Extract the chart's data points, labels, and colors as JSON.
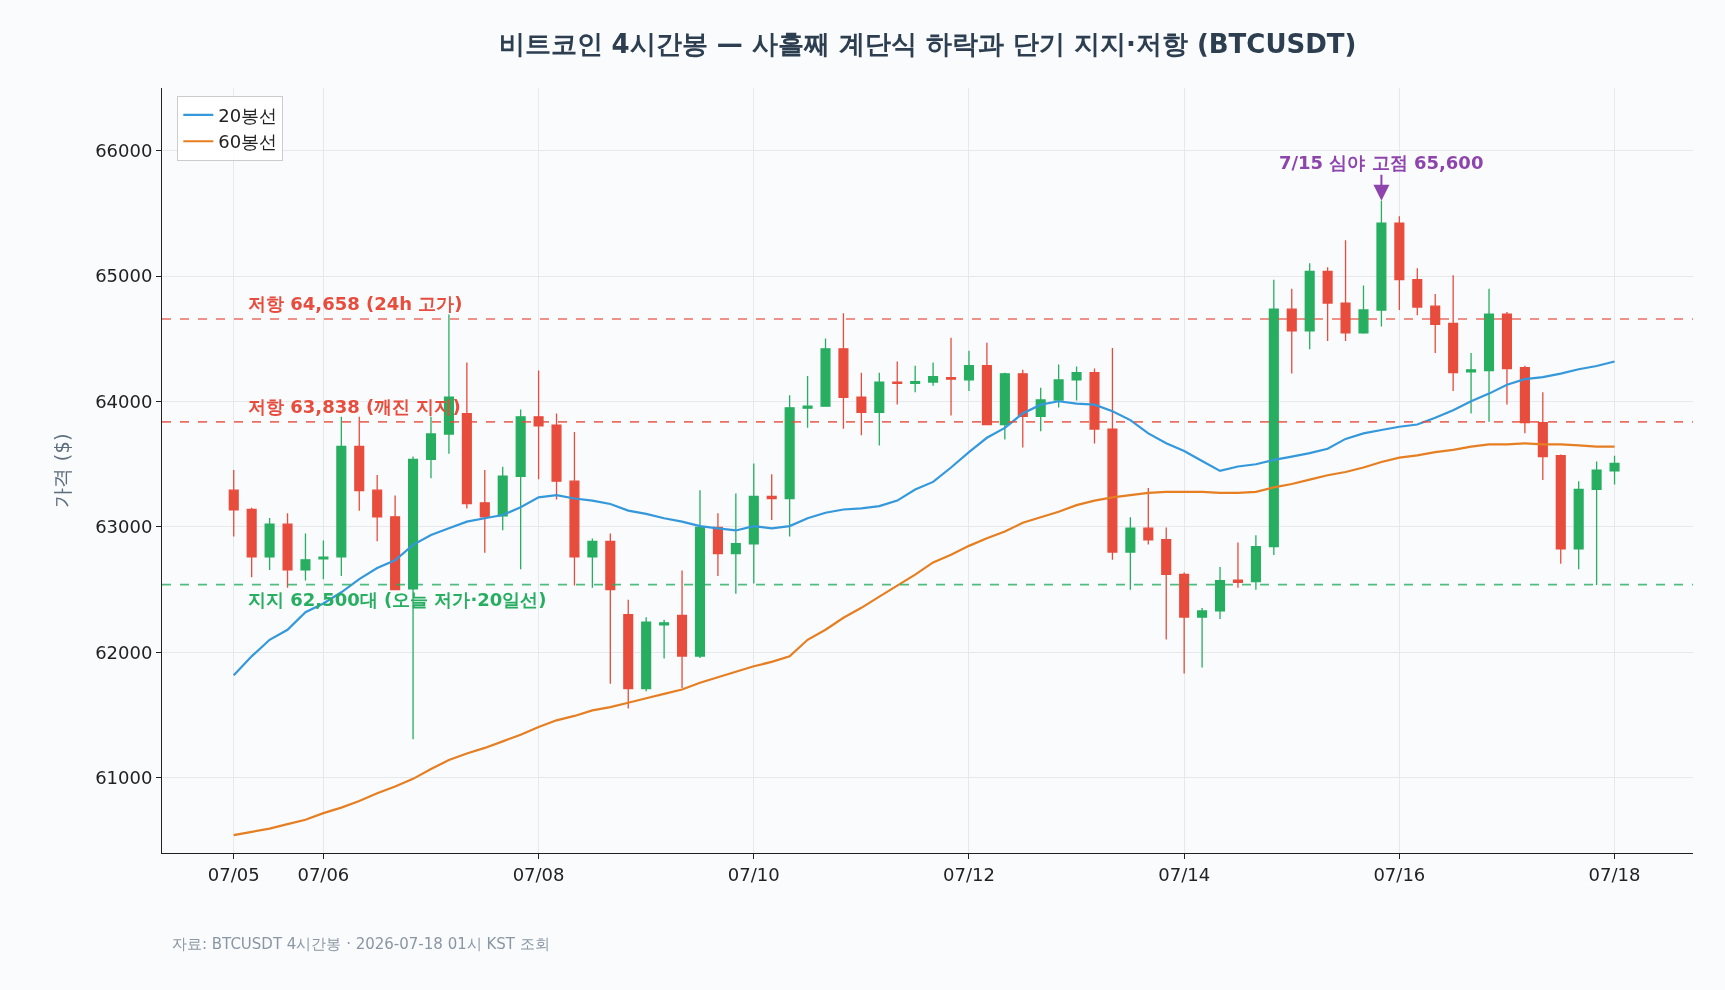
{
  "chart_data": {
    "type": "candlestick",
    "title": "비트코인 4시간봉 — 사흘째 계단식 하락과 단기 지지·저항 (BTCUSDT)",
    "ylabel": "가격 ($)",
    "x": [
      "2026-07-05T04:00",
      "2026-07-05T08:00",
      "2026-07-05T12:00",
      "2026-07-05T16:00",
      "2026-07-05T20:00",
      "2026-07-06T00:00",
      "2026-07-06T04:00",
      "2026-07-06T08:00",
      "2026-07-06T12:00",
      "2026-07-06T16:00",
      "2026-07-06T20:00",
      "2026-07-07T00:00",
      "2026-07-07T04:00",
      "2026-07-07T08:00",
      "2026-07-07T12:00",
      "2026-07-07T16:00",
      "2026-07-07T20:00",
      "2026-07-08T00:00",
      "2026-07-08T04:00",
      "2026-07-08T08:00",
      "2026-07-08T12:00",
      "2026-07-08T16:00",
      "2026-07-08T20:00",
      "2026-07-09T00:00",
      "2026-07-09T04:00",
      "2026-07-09T08:00",
      "2026-07-09T12:00",
      "2026-07-09T16:00",
      "2026-07-09T20:00",
      "2026-07-10T00:00",
      "2026-07-10T04:00",
      "2026-07-10T08:00",
      "2026-07-10T12:00",
      "2026-07-10T16:00",
      "2026-07-10T20:00",
      "2026-07-11T00:00",
      "2026-07-11T04:00",
      "2026-07-11T08:00",
      "2026-07-11T12:00",
      "2026-07-11T16:00",
      "2026-07-11T20:00",
      "2026-07-12T00:00",
      "2026-07-12T04:00",
      "2026-07-12T08:00",
      "2026-07-12T12:00",
      "2026-07-12T16:00",
      "2026-07-12T20:00",
      "2026-07-13T00:00",
      "2026-07-13T04:00",
      "2026-07-13T08:00",
      "2026-07-13T12:00",
      "2026-07-13T16:00",
      "2026-07-13T20:00",
      "2026-07-14T00:00",
      "2026-07-14T04:00",
      "2026-07-14T08:00",
      "2026-07-14T12:00",
      "2026-07-14T16:00",
      "2026-07-14T20:00",
      "2026-07-15T00:00",
      "2026-07-15T04:00",
      "2026-07-15T08:00",
      "2026-07-15T12:00",
      "2026-07-15T16:00",
      "2026-07-15T20:00",
      "2026-07-16T00:00",
      "2026-07-16T04:00",
      "2026-07-16T08:00",
      "2026-07-16T12:00",
      "2026-07-16T16:00",
      "2026-07-16T20:00",
      "2026-07-17T00:00",
      "2026-07-17T04:00",
      "2026-07-17T08:00",
      "2026-07-17T12:00",
      "2026-07-17T16:00",
      "2026-07-17T20:00",
      "2026-07-18T00:00"
    ],
    "ohlc": [
      [
        63293,
        63453,
        62924,
        63137
      ],
      [
        63140,
        63153,
        62598,
        62761
      ],
      [
        62761,
        63071,
        62657,
        63022
      ],
      [
        63022,
        63110,
        62516,
        62657
      ],
      [
        62657,
        62947,
        62572,
        62738
      ],
      [
        62745,
        62892,
        62582,
        62760
      ],
      [
        62761,
        63878,
        62608,
        63643
      ],
      [
        63643,
        63878,
        63130,
        63290
      ],
      [
        63293,
        63414,
        62885,
        63081
      ],
      [
        63081,
        63251,
        62495,
        62500
      ],
      [
        62506,
        63561,
        61308,
        63538
      ],
      [
        63538,
        63878,
        63388,
        63741
      ],
      [
        63741,
        64694,
        63584,
        64035
      ],
      [
        63904,
        64312,
        63146,
        63186
      ],
      [
        63192,
        63453,
        62794,
        63081
      ],
      [
        63088,
        63479,
        62973,
        63404
      ],
      [
        63404,
        63937,
        62663,
        63878
      ],
      [
        63878,
        64247,
        63381,
        63806
      ],
      [
        63812,
        63904,
        63218,
        63365
      ],
      [
        63365,
        63757,
        62533,
        62761
      ],
      [
        62761,
        62908,
        62516,
        62885
      ],
      [
        62885,
        62947,
        61749,
        62500
      ],
      [
        62300,
        62420,
        61553,
        61710
      ],
      [
        61710,
        62280,
        61690,
        62240
      ],
      [
        62220,
        62260,
        61950,
        62235
      ],
      [
        62294,
        62653,
        61716,
        61971
      ],
      [
        61971,
        63293,
        61955,
        62996
      ],
      [
        62996,
        63110,
        62608,
        62787
      ],
      [
        62787,
        63267,
        62467,
        62866
      ],
      [
        62866,
        63506,
        62549,
        63244
      ],
      [
        63244,
        63421,
        63055,
        63225
      ],
      [
        63225,
        64051,
        62924,
        63950
      ],
      [
        63947,
        64204,
        63790,
        63963
      ],
      [
        63963,
        64502,
        63960,
        64420
      ],
      [
        64420,
        64704,
        63783,
        64034
      ],
      [
        64034,
        64230,
        63731,
        63914
      ],
      [
        63914,
        64230,
        63649,
        64155
      ],
      [
        64155,
        64319,
        63976,
        64145
      ],
      [
        64145,
        64286,
        64074,
        64159
      ],
      [
        64155,
        64312,
        64126,
        64198
      ],
      [
        64191,
        64508,
        63888,
        64178
      ],
      [
        64172,
        64404,
        64083,
        64286
      ],
      [
        64286,
        64469,
        63810,
        63816
      ],
      [
        63816,
        64230,
        63698,
        64221
      ],
      [
        64221,
        64253,
        63633,
        63881
      ],
      [
        63881,
        64110,
        63763,
        64012
      ],
      [
        64012,
        64296,
        63953,
        64172
      ],
      [
        64172,
        64279,
        64008,
        64230
      ],
      [
        64230,
        64263,
        63666,
        63780
      ],
      [
        63780,
        64426,
        62738,
        62800
      ],
      [
        62800,
        63078,
        62500,
        62990
      ],
      [
        62990,
        63310,
        62859,
        62898
      ],
      [
        62898,
        62996,
        62102,
        62621
      ],
      [
        62621,
        62637,
        61831,
        62281
      ],
      [
        62281,
        62353,
        61880,
        62330
      ],
      [
        62330,
        62680,
        62265,
        62572
      ],
      [
        62575,
        62875,
        62516,
        62559
      ],
      [
        62565,
        62934,
        62500,
        62843
      ],
      [
        62843,
        64971,
        62777,
        64736
      ],
      [
        64736,
        64900,
        64224,
        64563
      ],
      [
        64563,
        65102,
        64416,
        65037
      ],
      [
        65037,
        65070,
        64482,
        64785
      ],
      [
        64785,
        65285,
        64482,
        64547
      ],
      [
        64547,
        64926,
        64540,
        64730
      ],
      [
        64730,
        65600,
        64599,
        65423
      ],
      [
        65423,
        65478,
        64730,
        64972
      ],
      [
        64972,
        65063,
        64687,
        64753
      ],
      [
        64760,
        64857,
        64387,
        64616
      ],
      [
        64622,
        65007,
        64083,
        64230
      ],
      [
        64237,
        64387,
        63904,
        64253
      ],
      [
        64247,
        64900,
        63839,
        64697
      ],
      [
        64697,
        64713,
        63976,
        64263
      ],
      [
        64270,
        64286,
        63747,
        63832
      ],
      [
        63832,
        64074,
        63375,
        63561
      ],
      [
        63568,
        63578,
        62706,
        62826
      ],
      [
        62826,
        63365,
        62663,
        63300
      ],
      [
        63300,
        63522,
        62536,
        63453
      ],
      [
        63447,
        63568,
        63339,
        63506
      ]
    ],
    "colors": [
      "#e74c3c",
      "#e74c3c",
      "#27ae60",
      "#e74c3c",
      "#27ae60",
      "#27ae60",
      "#27ae60",
      "#e74c3c",
      "#e74c3c",
      "#e74c3c",
      "#27ae60",
      "#27ae60",
      "#27ae60",
      "#e74c3c",
      "#e74c3c",
      "#27ae60",
      "#27ae60",
      "#e74c3c",
      "#e74c3c",
      "#e74c3c",
      "#27ae60",
      "#e74c3c",
      "#e74c3c",
      "#27ae60",
      "#27ae60",
      "#e74c3c",
      "#27ae60",
      "#e74c3c",
      "#27ae60",
      "#27ae60",
      "#e74c3c",
      "#27ae60",
      "#27ae60",
      "#27ae60",
      "#e74c3c",
      "#e74c3c",
      "#27ae60",
      "#e74c3c",
      "#27ae60",
      "#27ae60",
      "#e74c3c",
      "#27ae60",
      "#e74c3c",
      "#27ae60",
      "#e74c3c",
      "#27ae60",
      "#27ae60",
      "#27ae60",
      "#e74c3c",
      "#e74c3c",
      "#27ae60",
      "#e74c3c",
      "#e74c3c",
      "#e74c3c",
      "#27ae60",
      "#27ae60",
      "#e74c3c",
      "#27ae60",
      "#27ae60",
      "#e74c3c",
      "#27ae60",
      "#e74c3c",
      "#e74c3c",
      "#27ae60",
      "#27ae60",
      "#e74c3c",
      "#e74c3c",
      "#e74c3c",
      "#e74c3c",
      "#27ae60",
      "#27ae60",
      "#e74c3c",
      "#e74c3c",
      "#e74c3c",
      "#e74c3c",
      "#27ae60",
      "#27ae60",
      "#27ae60"
    ],
    "series": [
      {
        "name": "20봉선",
        "type": "line",
        "color": "#3498db",
        "values": [
          61818,
          61968,
          62100,
          62180,
          62320,
          62390,
          62479,
          62584,
          62672,
          62734,
          62857,
          62936,
          62989,
          63042,
          63069,
          63095,
          63157,
          63236,
          63254,
          63227,
          63210,
          63183,
          63130,
          63104,
          63069,
          63042,
          63007,
          62989,
          62972,
          63007,
          62989,
          63007,
          63069,
          63113,
          63139,
          63148,
          63166,
          63210,
          63298,
          63359,
          63474,
          63597,
          63711,
          63790,
          63905,
          63975,
          64002,
          63984,
          63975,
          63922,
          63852,
          63746,
          63667,
          63606,
          63526,
          63447,
          63482,
          63500,
          63535,
          63561,
          63588,
          63623,
          63702,
          63746,
          63773,
          63799,
          63817,
          63870,
          63931,
          64002,
          64063,
          64134,
          64178,
          64195,
          64222,
          64257,
          64283,
          64319
        ]
      },
      {
        "name": "60봉선",
        "type": "line",
        "color": "#e67e22",
        "values": [
          60542,
          60569,
          60595,
          60630,
          60665,
          60718,
          60762,
          60815,
          60877,
          60930,
          60991,
          61070,
          61141,
          61194,
          61238,
          61290,
          61343,
          61405,
          61458,
          61493,
          61537,
          61563,
          61598,
          61634,
          61669,
          61704,
          61757,
          61801,
          61845,
          61889,
          61924,
          61968,
          62100,
          62180,
          62276,
          62355,
          62444,
          62532,
          62620,
          62717,
          62778,
          62849,
          62910,
          62963,
          63033,
          63077,
          63121,
          63174,
          63210,
          63236,
          63254,
          63271,
          63280,
          63280,
          63280,
          63271,
          63271,
          63280,
          63315,
          63342,
          63377,
          63412,
          63438,
          63474,
          63518,
          63553,
          63570,
          63597,
          63614,
          63641,
          63658,
          63658,
          63667,
          63658,
          63658,
          63650,
          63641,
          63641
        ]
      }
    ],
    "xlim": [
      "2026-07-04T12:00",
      "2026-07-18T17:30"
    ],
    "xticks": [
      {
        "value": "2026-07-05T04:00",
        "label": "07/05"
      },
      {
        "value": "2026-07-06T00:00",
        "label": "07/06"
      },
      {
        "value": "2026-07-08T00:00",
        "label": "07/08"
      },
      {
        "value": "2026-07-10T00:00",
        "label": "07/10"
      },
      {
        "value": "2026-07-12T00:00",
        "label": "07/12"
      },
      {
        "value": "2026-07-14T00:00",
        "label": "07/14"
      },
      {
        "value": "2026-07-16T00:00",
        "label": "07/16"
      },
      {
        "value": "2026-07-18T00:00",
        "label": "07/18"
      }
    ],
    "ylim": [
      60400,
      66500
    ],
    "yticks": [
      61000,
      62000,
      63000,
      64000,
      65000,
      66000
    ],
    "ref_lines": [
      {
        "axis": "y",
        "value": 64658,
        "label": "저항 64,658 (24h 고가)",
        "color": "#e74c3c",
        "line_style": "dashed"
      },
      {
        "axis": "y",
        "value": 63838,
        "label": "저항 63,838 (깨진 지지)",
        "color": "#e74c3c",
        "line_style": "dashed"
      },
      {
        "axis": "y",
        "value": 62540,
        "label": "지지 62,500대 (오늘 저가·20일선)",
        "color": "#27ae60",
        "line_style": "dashed"
      }
    ],
    "annotations": [
      {
        "text": "7/15 심야 고점 65,600",
        "x": "2026-07-15T20:00",
        "y": 65600
      },
      "자료: BTCUSDT 4시간봉 · 2026-07-18 01시 KST 조회"
    ],
    "grid": true,
    "legend": "top left"
  }
}
